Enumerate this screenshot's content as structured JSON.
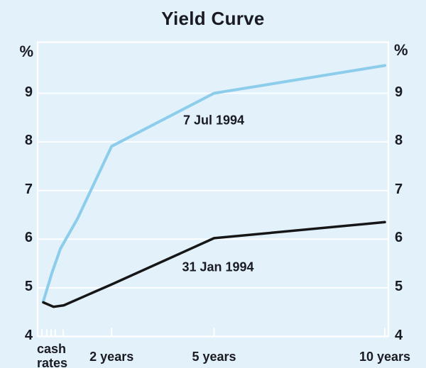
{
  "title": "Yield Curve",
  "colors": {
    "background": "#e2f1fa",
    "grid": "#ffffff",
    "frame": "#ffffff",
    "text": "#1a1a22",
    "series_jul_1994": "#8ccdeb",
    "series_jan_1994": "#161616"
  },
  "chart_data": {
    "type": "line",
    "title": "Yield Curve",
    "ylabel": "%",
    "ylabel_right": "%",
    "ylim": [
      4,
      10.05
    ],
    "yticks": [
      4,
      5,
      6,
      7,
      8,
      9
    ],
    "grid": true,
    "legend_position": "inline-annotations",
    "xticks": [
      {
        "year": 0,
        "lines": [
          "cash",
          "rates"
        ]
      },
      {
        "year": 2,
        "label": "2 years"
      },
      {
        "year": 5,
        "label": "5 years"
      },
      {
        "year": 10,
        "label": "10 years"
      }
    ],
    "minor_tick_years": [
      -0.04,
      0.1,
      0.23,
      0.35,
      0.58
    ],
    "series": [
      {
        "name": "7 Jul 1994",
        "color": "#8ccdeb",
        "points": [
          [
            0,
            4.72
          ],
          [
            0.25,
            5.3
          ],
          [
            0.5,
            5.8
          ],
          [
            1,
            6.42
          ],
          [
            2,
            7.91
          ],
          [
            5,
            9.0
          ],
          [
            10,
            9.57
          ]
        ]
      },
      {
        "name": "31 Jan 1994",
        "color": "#161616",
        "points": [
          [
            0,
            4.7
          ],
          [
            0.3,
            4.61
          ],
          [
            0.6,
            4.64
          ],
          [
            2,
            5.07
          ],
          [
            5,
            6.02
          ],
          [
            10,
            6.35
          ]
        ]
      }
    ]
  }
}
